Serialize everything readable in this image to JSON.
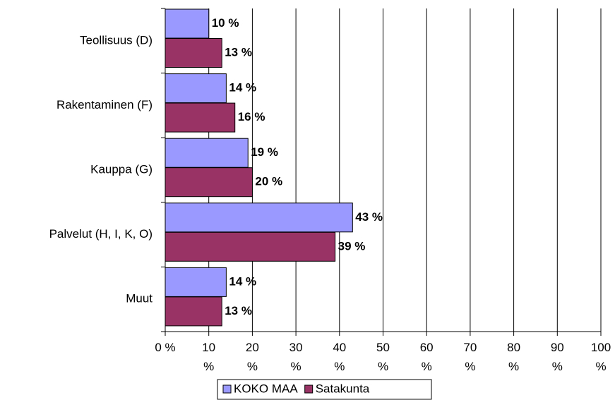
{
  "chart_data": {
    "type": "bar",
    "orientation": "horizontal",
    "categories": [
      "Teollisuus (D)",
      "Rakentaminen (F)",
      "Kauppa (G)",
      "Palvelut (H, I, K, O)",
      "Muut"
    ],
    "series": [
      {
        "name": "KOKO MAA",
        "color": "#9999ff",
        "values": [
          10,
          14,
          19,
          43,
          14
        ],
        "value_labels": [
          "10 %",
          "14 %",
          "19 %",
          "43 %",
          "14 %"
        ]
      },
      {
        "name": "Satakunta",
        "color": "#993366",
        "values": [
          13,
          16,
          20,
          39,
          13
        ],
        "value_labels": [
          "13 %",
          "16 %",
          "20 %",
          "39 %",
          "13 %"
        ]
      }
    ],
    "xlim": [
      0,
      100
    ],
    "xticks": [
      {
        "value": 0,
        "label": "0 %"
      },
      {
        "value": 10,
        "label": "10 %"
      },
      {
        "value": 20,
        "label": "20 %"
      },
      {
        "value": 30,
        "label": "30 %"
      },
      {
        "value": 40,
        "label": "40 %"
      },
      {
        "value": 50,
        "label": "50 %"
      },
      {
        "value": 60,
        "label": "60 %"
      },
      {
        "value": 70,
        "label": "70 %"
      },
      {
        "value": 80,
        "label": "80 %"
      },
      {
        "value": 90,
        "label": "90 %"
      },
      {
        "value": 100,
        "label": "100 %"
      }
    ],
    "grid": true,
    "legend": "bottom"
  }
}
